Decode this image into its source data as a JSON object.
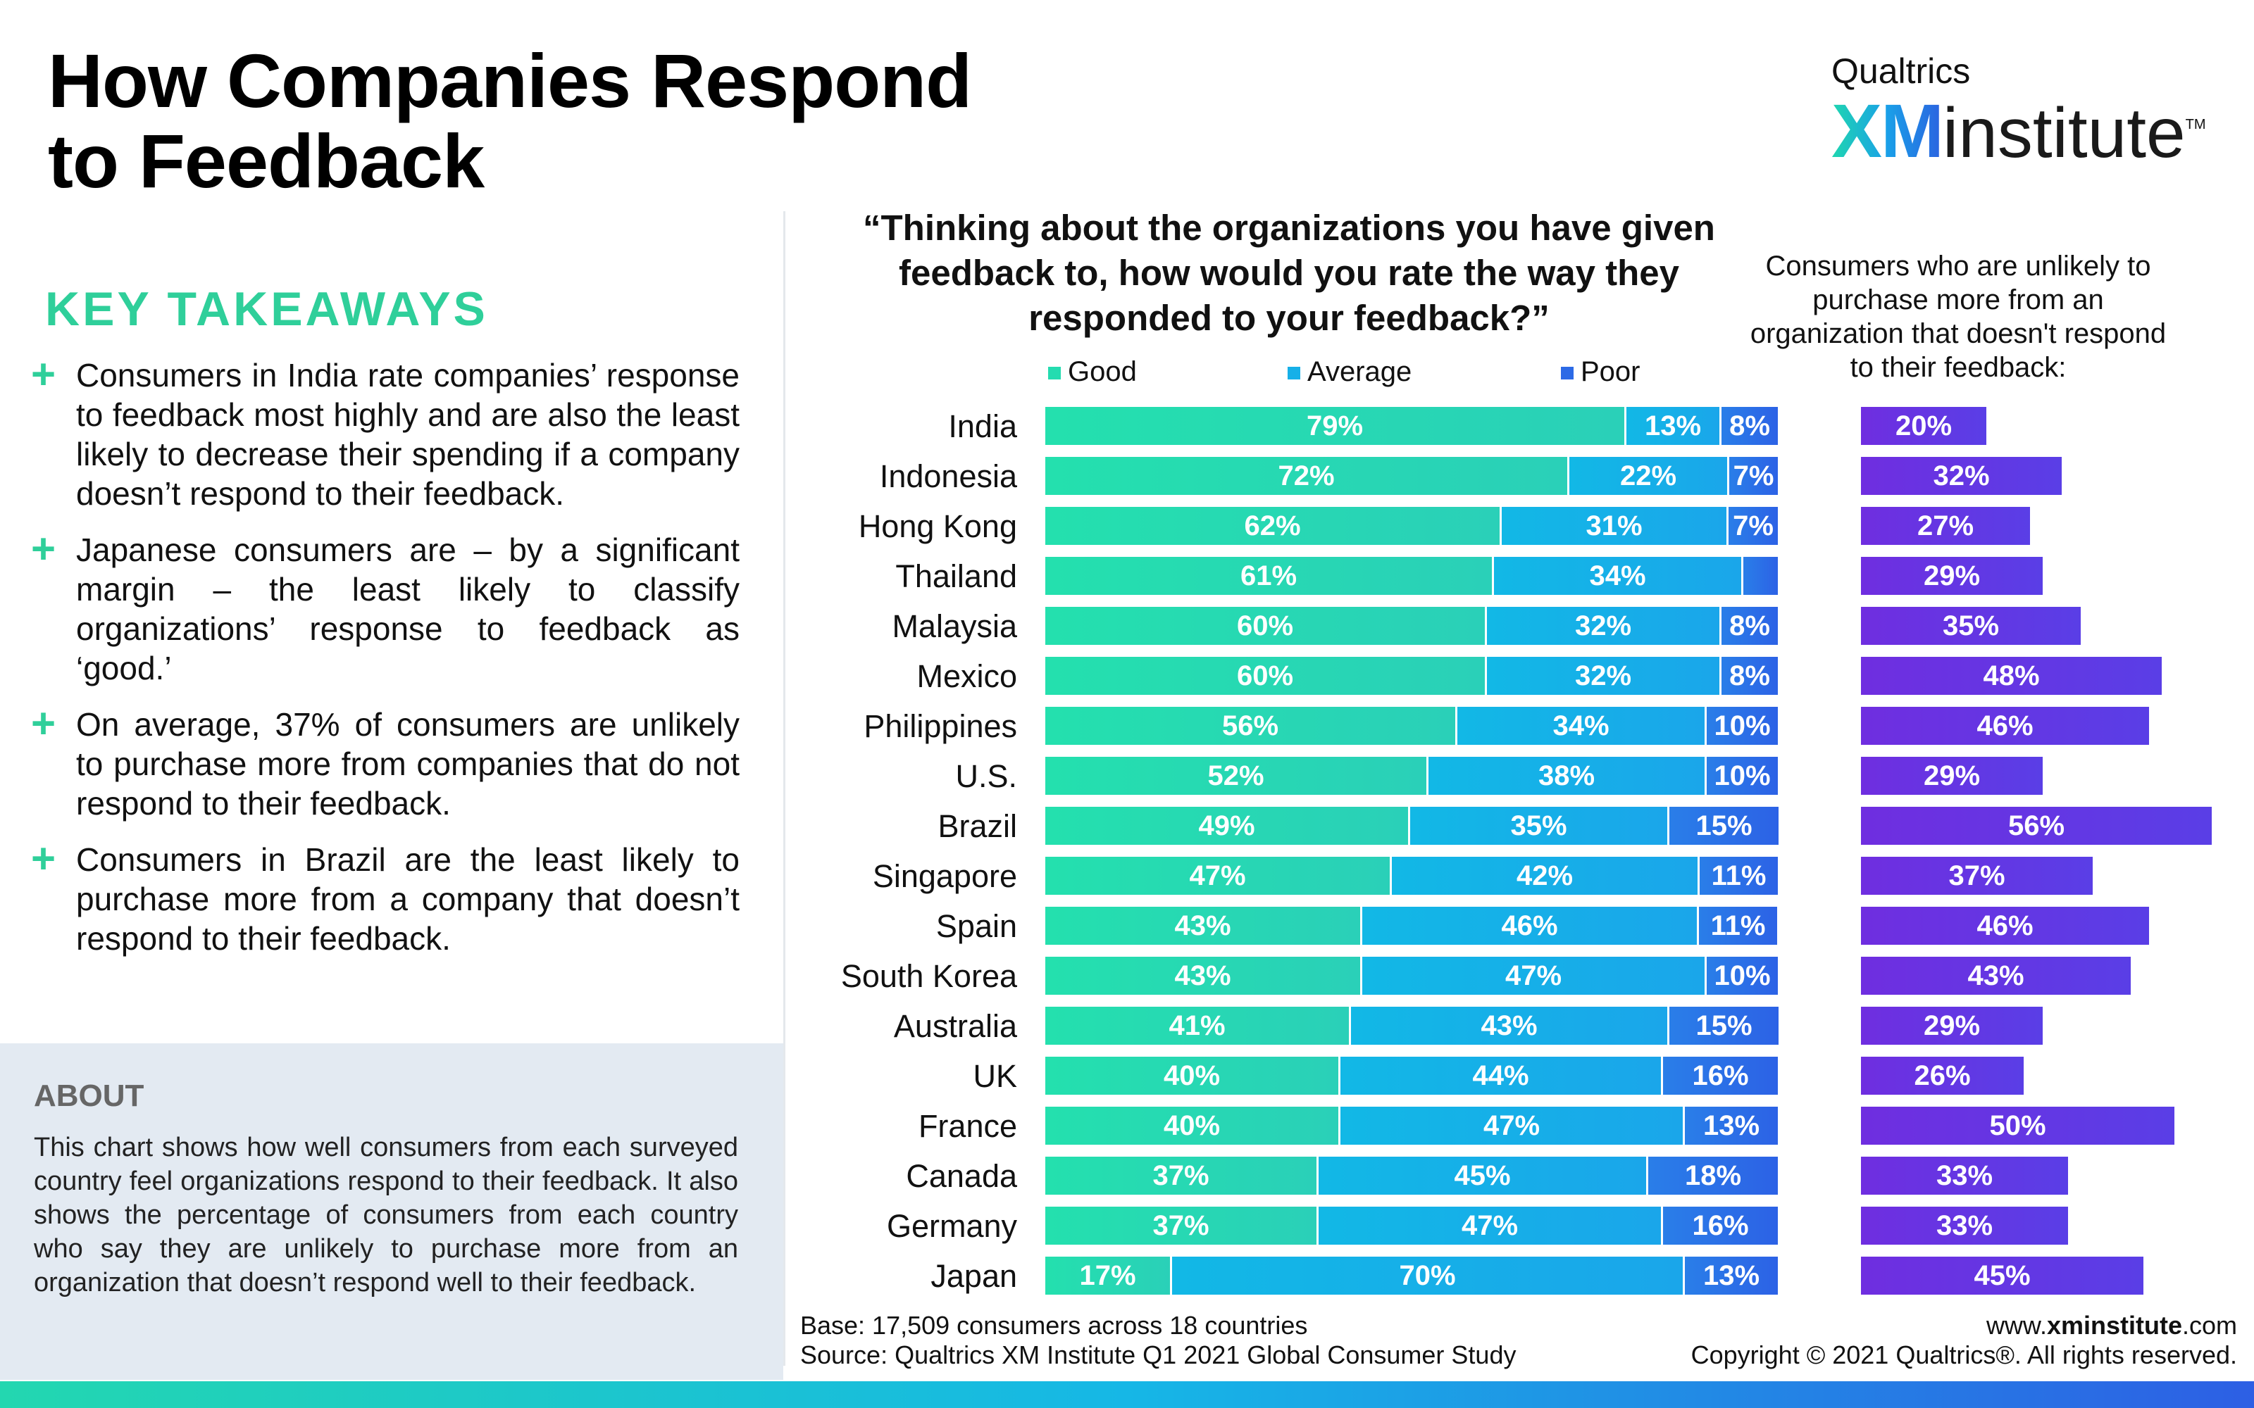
{
  "title": {
    "line1": "How Companies Respond",
    "line2": "to Feedback"
  },
  "logo": {
    "brand": "Qualtrics",
    "xm": "XM",
    "institute": "institute",
    "tm": "TM"
  },
  "key_takeaways": {
    "heading": "KEY TAKEAWAYS",
    "items": [
      "Consumers in India rate companies’ response to feedback most highly and are also the least likely to decrease their spending if a company doesn’t respond to their feedback.",
      "Japanese consumers are – by a significant margin – the least likely to classify organizations’ response to feedback as ‘good.’",
      "On average, 37% of consumers are unlikely to purchase more from companies that do not respond to their feedback.",
      "Consumers in Brazil are the least likely to purchase more from a company that doesn’t respond to their feedback."
    ]
  },
  "about": {
    "heading": "ABOUT",
    "text": "This chart shows how well consumers from each surveyed country feel organizations respond to their feedback. It also shows the percentage of consumers from each country who say they are unlikely to purchase more from an organization that doesn’t respond well to their feedback."
  },
  "colors": {
    "good": "#24dcb0",
    "average": "#16b0e8",
    "poor": "#2c6ae6",
    "unlikely": "#6336e2",
    "accent": "#2fcf9a"
  },
  "chart_data": [
    {
      "type": "bar",
      "orientation": "horizontal",
      "stacked": true,
      "title": "“Thinking about the organizations you have given feedback to, how would you rate the way they responded to your feedback?”",
      "legend": [
        "Good",
        "Average",
        "Poor"
      ],
      "legend_position": "top",
      "categories": [
        "India",
        "Indonesia",
        "Hong Kong",
        "Thailand",
        "Malaysia",
        "Mexico",
        "Philippines",
        "U.S.",
        "Brazil",
        "Singapore",
        "Spain",
        "South Korea",
        "Australia",
        "UK",
        "France",
        "Canada",
        "Germany",
        "Japan"
      ],
      "series": [
        {
          "name": "Good",
          "values": [
            79,
            72,
            62,
            61,
            60,
            60,
            56,
            52,
            49,
            47,
            43,
            43,
            41,
            40,
            40,
            37,
            37,
            17
          ]
        },
        {
          "name": "Average",
          "values": [
            13,
            22,
            31,
            34,
            32,
            32,
            34,
            38,
            35,
            42,
            46,
            47,
            43,
            44,
            47,
            45,
            47,
            70
          ]
        },
        {
          "name": "Poor",
          "values": [
            8,
            7,
            7,
            5,
            8,
            8,
            10,
            10,
            15,
            11,
            11,
            10,
            15,
            16,
            13,
            18,
            16,
            13
          ]
        }
      ],
      "hidden_labels": {
        "Poor": [
          "Thailand"
        ]
      },
      "unit": "%"
    },
    {
      "type": "bar",
      "orientation": "horizontal",
      "title": "Consumers who are unlikely to purchase more from an organization that doesn't respond to their feedback:",
      "categories": [
        "India",
        "Indonesia",
        "Hong Kong",
        "Thailand",
        "Malaysia",
        "Mexico",
        "Philippines",
        "U.S.",
        "Brazil",
        "Singapore",
        "Spain",
        "South Korea",
        "Australia",
        "UK",
        "France",
        "Canada",
        "Germany",
        "Japan"
      ],
      "values": [
        20,
        32,
        27,
        29,
        35,
        48,
        46,
        29,
        56,
        37,
        46,
        43,
        29,
        26,
        50,
        33,
        33,
        45
      ],
      "unit": "%"
    }
  ],
  "footer": {
    "base": "Base: 17,509 consumers across 18 countries",
    "source": "Source: Qualtrics XM Institute Q1 2021 Global Consumer Study",
    "site_prefix": "www.",
    "site_bold": "xminstitute",
    "site_suffix": ".com",
    "copyright": "Copyright © 2021 Qualtrics®. All rights reserved."
  }
}
